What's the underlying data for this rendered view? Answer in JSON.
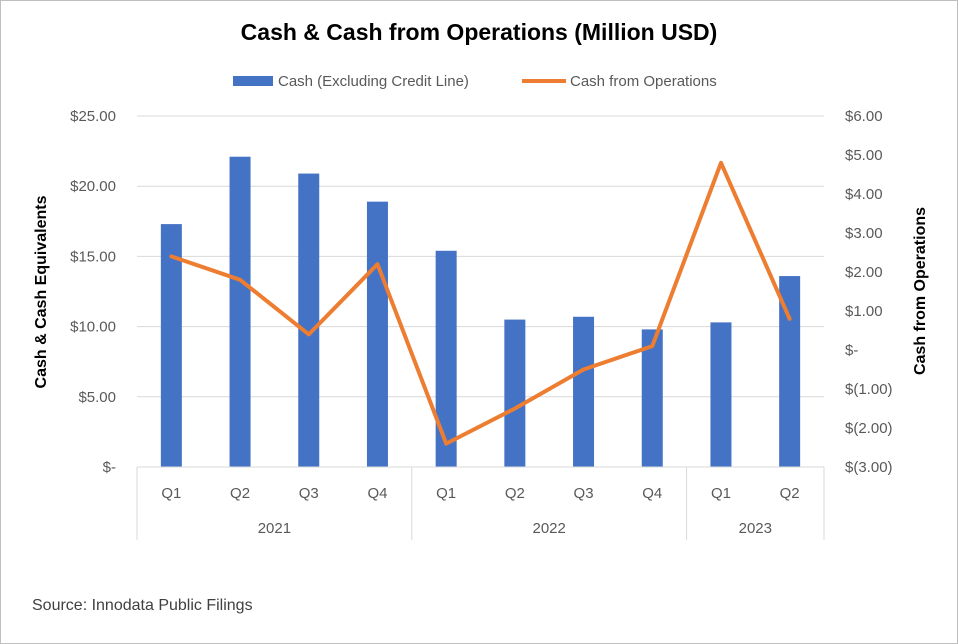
{
  "chart_data": {
    "type": "bar",
    "title": "Cash & Cash from Operations (Million USD)",
    "categories": [
      "Q1",
      "Q2",
      "Q3",
      "Q4",
      "Q1",
      "Q2",
      "Q3",
      "Q4",
      "Q1",
      "Q2"
    ],
    "groups": [
      {
        "label": "2021",
        "span": 4
      },
      {
        "label": "2022",
        "span": 4
      },
      {
        "label": "2023",
        "span": 2
      }
    ],
    "series": [
      {
        "name": "Cash (Excluding Credit Line)",
        "type": "bar",
        "axis": "left",
        "color": "#4472C4",
        "values": [
          17.3,
          22.1,
          20.9,
          18.9,
          15.4,
          10.5,
          10.7,
          9.8,
          10.3,
          13.6
        ]
      },
      {
        "name": "Cash from Operations",
        "type": "line",
        "axis": "right",
        "color": "#ED7D31",
        "values": [
          2.4,
          1.8,
          0.4,
          2.2,
          -2.4,
          -1.5,
          -0.5,
          0.1,
          4.8,
          0.8
        ]
      }
    ],
    "ylabel": "Cash & Cash Equivalents",
    "y2label": "Cash from Operations",
    "ylim": [
      0,
      25
    ],
    "y2lim": [
      -3,
      6
    ],
    "yticks": [
      "$-",
      "$5.00",
      "$10.00",
      "$15.00",
      "$20.00",
      "$25.00"
    ],
    "y2ticks": [
      "$(3.00)",
      "$(2.00)",
      "$(1.00)",
      "$-",
      "$1.00",
      "$2.00",
      "$3.00",
      "$4.00",
      "$5.00",
      "$6.00"
    ],
    "grid": true,
    "legend": "top"
  },
  "footer": {
    "source": "Source: Innodata Public Filings"
  }
}
